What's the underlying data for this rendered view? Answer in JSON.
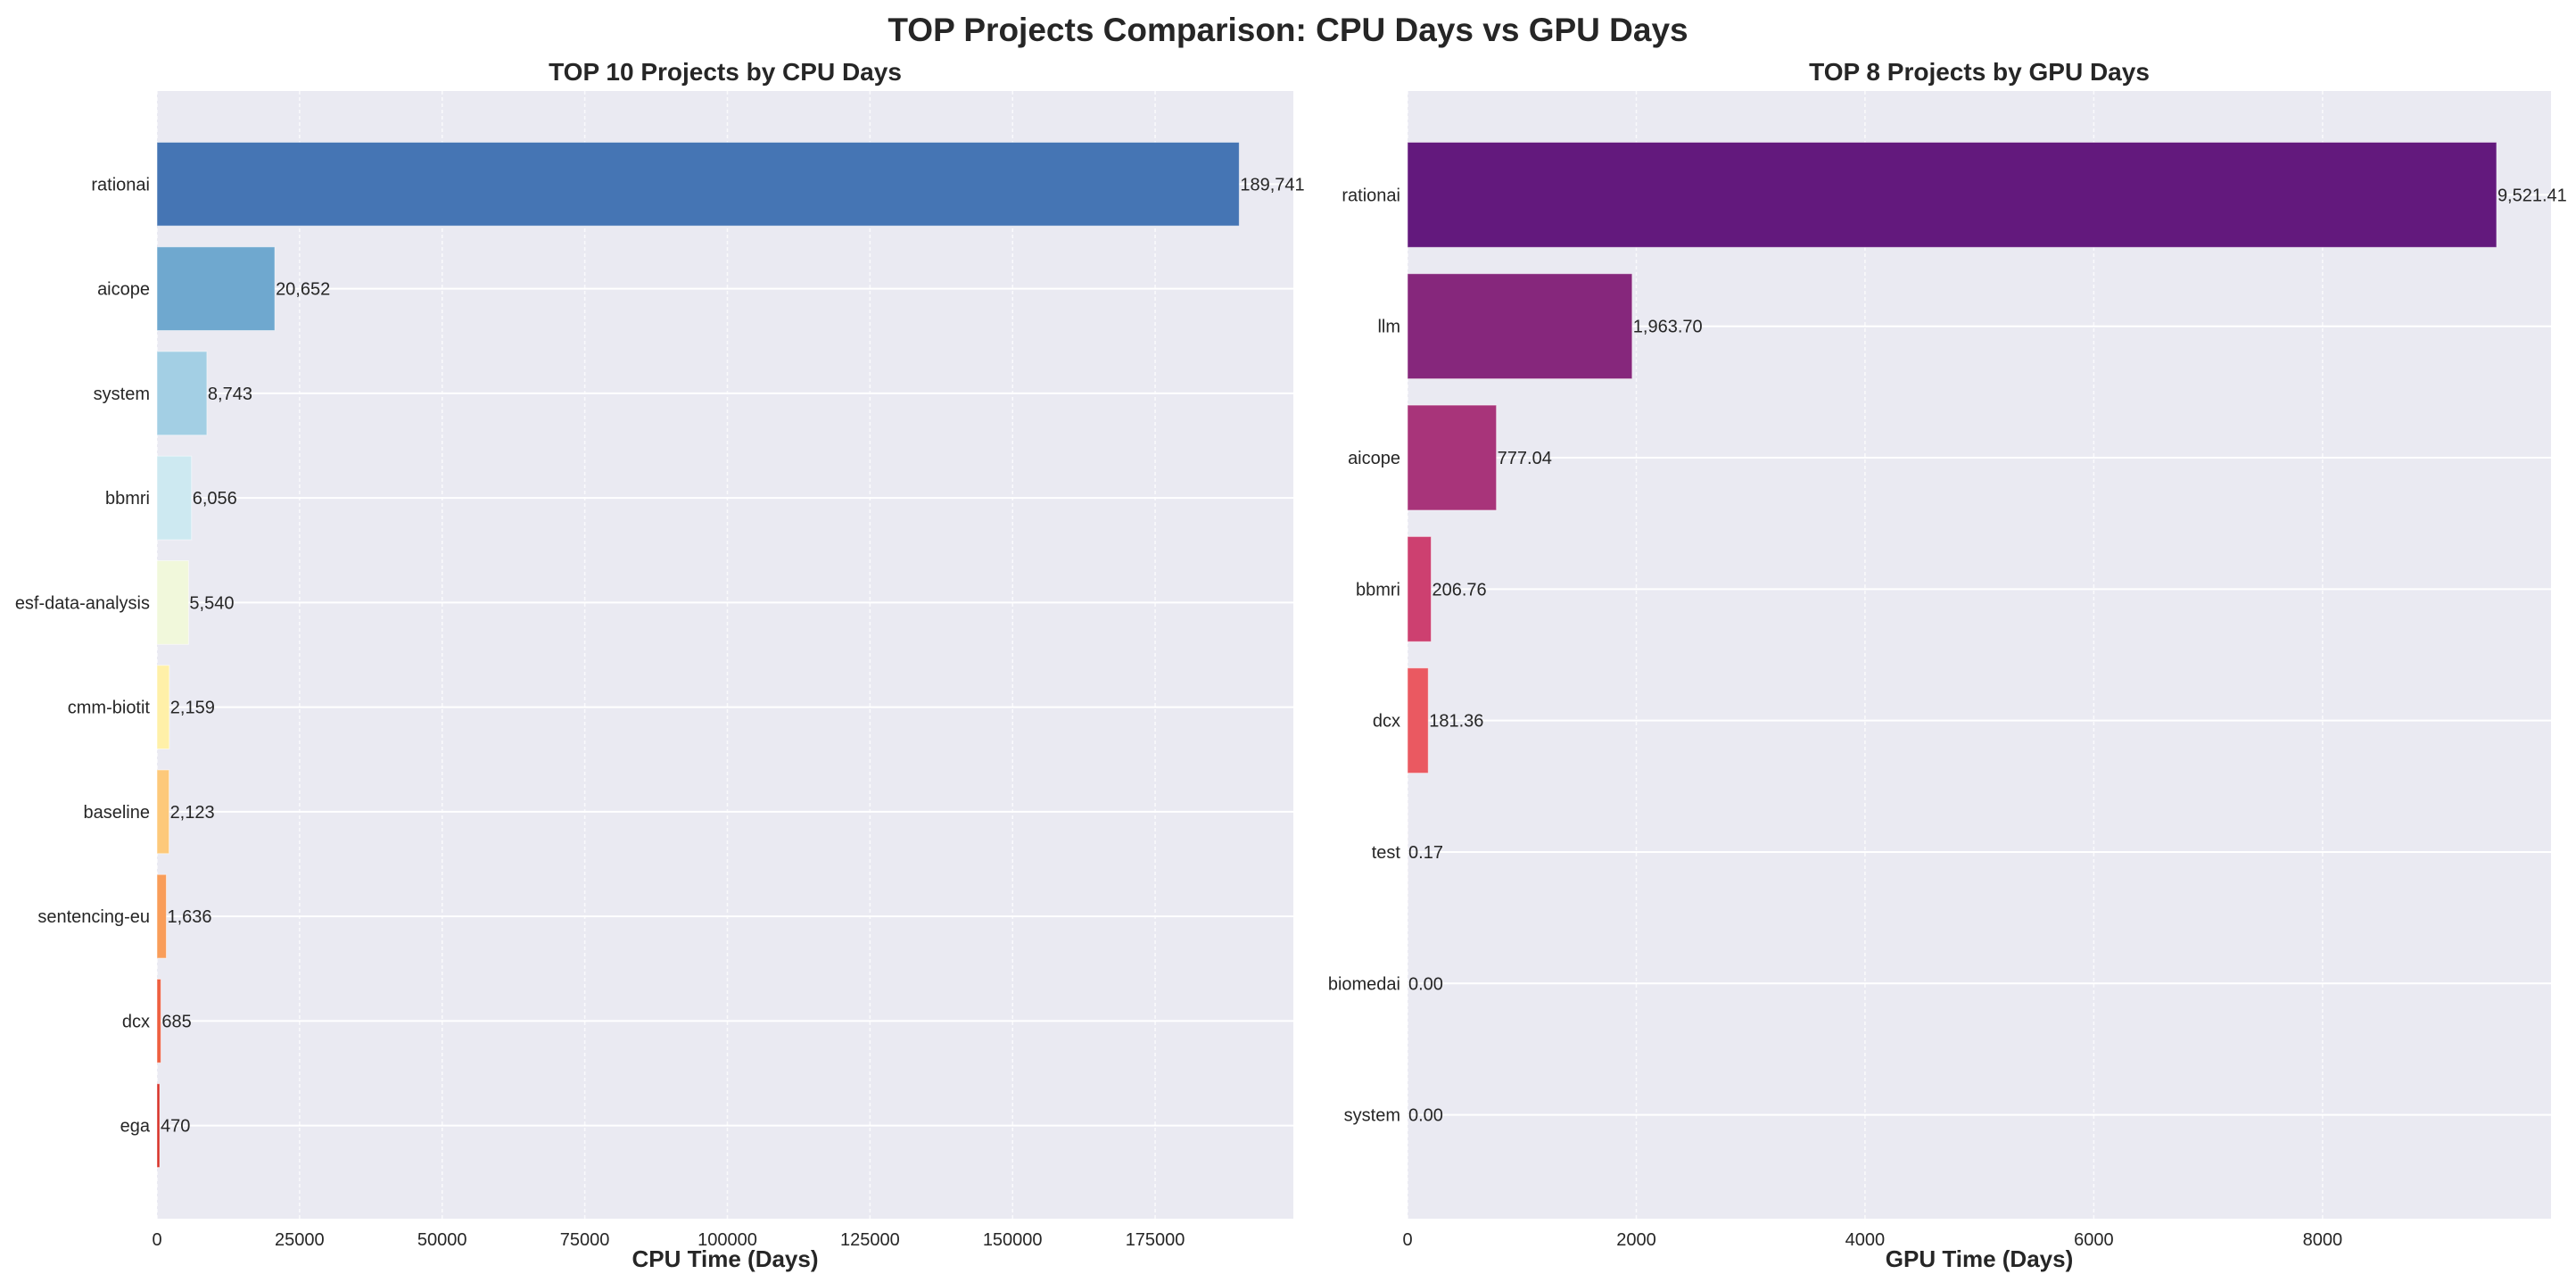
{
  "title": "TOP Projects Comparison: CPU Days vs GPU Days",
  "chart_data": [
    {
      "type": "bar",
      "orientation": "horizontal",
      "title": "TOP 10 Projects by CPU Days",
      "xlabel": "CPU Time (Days)",
      "ylabel": "",
      "categories": [
        "rationai",
        "aicope",
        "system",
        "bbmri",
        "esf-data-analysis",
        "cmm-biotit",
        "baseline",
        "sentencing-eu",
        "dcx",
        "ega"
      ],
      "values": [
        189741,
        20652,
        8743,
        6056,
        5540,
        2159,
        2123,
        1636,
        685,
        470
      ],
      "value_labels": [
        "189,741",
        "20,652",
        "8,743",
        "6,056",
        "5,540",
        "2,159",
        "2,123",
        "1,636",
        "685",
        "470"
      ],
      "colors": [
        "#4575b4",
        "#6fa8cf",
        "#a3cfe4",
        "#cde9f1",
        "#f1f8db",
        "#fff0a8",
        "#fdc97a",
        "#f99d59",
        "#ee5f3f",
        "#d73027"
      ],
      "xlim": [
        0,
        199228
      ],
      "xticks": [
        0,
        25000,
        50000,
        75000,
        100000,
        125000,
        150000,
        175000
      ],
      "xtick_labels": [
        "0",
        "25000",
        "50000",
        "75000",
        "100000",
        "125000",
        "150000",
        "175000"
      ],
      "grid": true
    },
    {
      "type": "bar",
      "orientation": "horizontal",
      "title": "TOP 8 Projects by GPU Days",
      "xlabel": "GPU Time (Days)",
      "ylabel": "",
      "categories": [
        "rationai",
        "llm",
        "aicope",
        "bbmri",
        "dcx",
        "test",
        "biomedai",
        "system"
      ],
      "values": [
        9521.41,
        1963.7,
        777.04,
        206.76,
        181.36,
        0.17,
        0.0,
        0.0
      ],
      "value_labels": [
        "9,521.41",
        "1,963.70",
        "777.04",
        "206.76",
        "181.36",
        "0.17",
        "0.00",
        "0.00"
      ],
      "colors": [
        "#63197d",
        "#86277c",
        "#a8347a",
        "#cd4070",
        "#ea5961",
        "#f78a63",
        "#fcba7f",
        "#fcecaf"
      ],
      "xlim": [
        0,
        9997.5
      ],
      "xticks": [
        0,
        2000,
        4000,
        6000,
        8000
      ],
      "xtick_labels": [
        "0",
        "2000",
        "4000",
        "6000",
        "8000"
      ],
      "grid": true
    }
  ]
}
